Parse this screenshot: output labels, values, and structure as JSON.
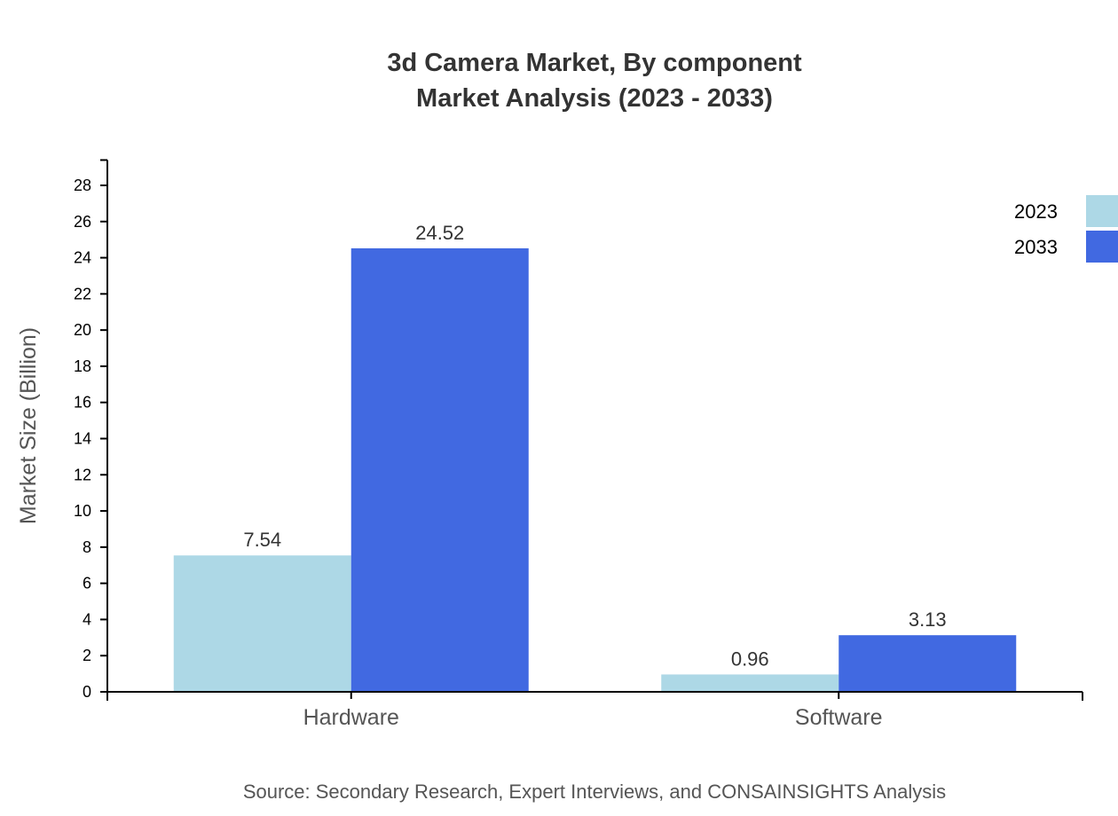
{
  "chart_data": {
    "type": "bar",
    "title_line1": "3d Camera Market, By component",
    "title_line2": "Market Analysis (2023 - 2033)",
    "xlabel": "",
    "ylabel": "Market Size (Billion)",
    "ylim": [
      0,
      29.4
    ],
    "yticks": [
      0,
      2,
      4,
      6,
      8,
      10,
      12,
      14,
      16,
      18,
      20,
      22,
      24,
      26,
      28
    ],
    "categories": [
      "Hardware",
      "Software"
    ],
    "series": [
      {
        "name": "2023",
        "color": "#add8e6",
        "values": [
          7.54,
          0.96
        ]
      },
      {
        "name": "2033",
        "color": "#4169e1",
        "values": [
          24.52,
          3.13
        ]
      }
    ],
    "legend_position": "top-right",
    "grid": false,
    "source": "Source: Secondary Research, Expert Interviews, and CONSAINSIGHTS Analysis"
  }
}
